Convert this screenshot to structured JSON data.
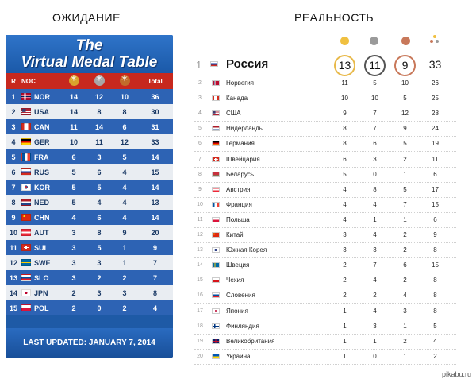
{
  "captions": {
    "left": "ОЖИДАНИЕ",
    "right": "РЕАЛЬНОСТЬ"
  },
  "virtual_table": {
    "title_line1": "The",
    "title_line2": "Virtual Medal Table",
    "headers": {
      "rank": "R",
      "noc": "NOC",
      "total": "Total"
    },
    "medal_icon_colors": {
      "gold": "#d9a22c",
      "silver": "#a7a7a7",
      "bronze": "#c26b2a"
    },
    "rows": [
      {
        "r": "1",
        "noc": "NOR",
        "g": "14",
        "s": "12",
        "b": "10",
        "t": "36",
        "flag": "nor"
      },
      {
        "r": "2",
        "noc": "USA",
        "g": "14",
        "s": "8",
        "b": "8",
        "t": "30",
        "flag": "usa"
      },
      {
        "r": "3",
        "noc": "CAN",
        "g": "11",
        "s": "14",
        "b": "6",
        "t": "31",
        "flag": "can"
      },
      {
        "r": "4",
        "noc": "GER",
        "g": "10",
        "s": "11",
        "b": "12",
        "t": "33",
        "flag": "ger"
      },
      {
        "r": "5",
        "noc": "FRA",
        "g": "6",
        "s": "3",
        "b": "5",
        "t": "14",
        "flag": "fra"
      },
      {
        "r": "6",
        "noc": "RUS",
        "g": "5",
        "s": "6",
        "b": "4",
        "t": "15",
        "flag": "rus"
      },
      {
        "r": "7",
        "noc": "KOR",
        "g": "5",
        "s": "5",
        "b": "4",
        "t": "14",
        "flag": "kor"
      },
      {
        "r": "8",
        "noc": "NED",
        "g": "5",
        "s": "4",
        "b": "4",
        "t": "13",
        "flag": "ned"
      },
      {
        "r": "9",
        "noc": "CHN",
        "g": "4",
        "s": "6",
        "b": "4",
        "t": "14",
        "flag": "chn"
      },
      {
        "r": "10",
        "noc": "AUT",
        "g": "3",
        "s": "8",
        "b": "9",
        "t": "20",
        "flag": "aut"
      },
      {
        "r": "11",
        "noc": "SUI",
        "g": "3",
        "s": "5",
        "b": "1",
        "t": "9",
        "flag": "sui"
      },
      {
        "r": "12",
        "noc": "SWE",
        "g": "3",
        "s": "3",
        "b": "1",
        "t": "7",
        "flag": "swe"
      },
      {
        "r": "13",
        "noc": "SLO",
        "g": "3",
        "s": "2",
        "b": "2",
        "t": "7",
        "flag": "slo"
      },
      {
        "r": "14",
        "noc": "JPN",
        "g": "2",
        "s": "3",
        "b": "3",
        "t": "8",
        "flag": "jpn"
      },
      {
        "r": "15",
        "noc": "POL",
        "g": "2",
        "s": "0",
        "b": "2",
        "t": "4",
        "flag": "pol"
      }
    ],
    "footer": "LAST UPDATED: JANUARY 7, 2014"
  },
  "reality": {
    "header_icon_colors": {
      "gold": "#f0c040",
      "silver": "#9a9a9a",
      "bronze": "#c8785a"
    },
    "leader": {
      "rank": "1",
      "country": "Россия",
      "gold": "13",
      "silver": "11",
      "bronze": "9",
      "total": "33",
      "flag": "rus"
    },
    "rows": [
      {
        "r": "2",
        "c": "Норвегия",
        "g": "11",
        "s": "5",
        "b": "10",
        "t": "26",
        "flag": "nor"
      },
      {
        "r": "3",
        "c": "Канада",
        "g": "10",
        "s": "10",
        "b": "5",
        "t": "25",
        "flag": "can"
      },
      {
        "r": "4",
        "c": "США",
        "g": "9",
        "s": "7",
        "b": "12",
        "t": "28",
        "flag": "usa"
      },
      {
        "r": "5",
        "c": "Нидерланды",
        "g": "8",
        "s": "7",
        "b": "9",
        "t": "24",
        "flag": "ned"
      },
      {
        "r": "6",
        "c": "Германия",
        "g": "8",
        "s": "6",
        "b": "5",
        "t": "19",
        "flag": "ger"
      },
      {
        "r": "7",
        "c": "Швейцария",
        "g": "6",
        "s": "3",
        "b": "2",
        "t": "11",
        "flag": "sui"
      },
      {
        "r": "8",
        "c": "Беларусь",
        "g": "5",
        "s": "0",
        "b": "1",
        "t": "6",
        "flag": "blr"
      },
      {
        "r": "9",
        "c": "Австрия",
        "g": "4",
        "s": "8",
        "b": "5",
        "t": "17",
        "flag": "aut"
      },
      {
        "r": "10",
        "c": "Франция",
        "g": "4",
        "s": "4",
        "b": "7",
        "t": "15",
        "flag": "fra"
      },
      {
        "r": "11",
        "c": "Польша",
        "g": "4",
        "s": "1",
        "b": "1",
        "t": "6",
        "flag": "pol"
      },
      {
        "r": "12",
        "c": "Китай",
        "g": "3",
        "s": "4",
        "b": "2",
        "t": "9",
        "flag": "chn"
      },
      {
        "r": "13",
        "c": "Южная Корея",
        "g": "3",
        "s": "3",
        "b": "2",
        "t": "8",
        "flag": "kor"
      },
      {
        "r": "14",
        "c": "Швеция",
        "g": "2",
        "s": "7",
        "b": "6",
        "t": "15",
        "flag": "swe"
      },
      {
        "r": "15",
        "c": "Чехия",
        "g": "2",
        "s": "4",
        "b": "2",
        "t": "8",
        "flag": "cze"
      },
      {
        "r": "16",
        "c": "Словения",
        "g": "2",
        "s": "2",
        "b": "4",
        "t": "8",
        "flag": "slo"
      },
      {
        "r": "17",
        "c": "Япония",
        "g": "1",
        "s": "4",
        "b": "3",
        "t": "8",
        "flag": "jpn"
      },
      {
        "r": "18",
        "c": "Финляндия",
        "g": "1",
        "s": "3",
        "b": "1",
        "t": "5",
        "flag": "fin"
      },
      {
        "r": "19",
        "c": "Великобритания",
        "g": "1",
        "s": "1",
        "b": "2",
        "t": "4",
        "flag": "gbr"
      },
      {
        "r": "20",
        "c": "Украина",
        "g": "1",
        "s": "0",
        "b": "1",
        "t": "2",
        "flag": "ukr"
      }
    ]
  },
  "watermark": "pikabu.ru"
}
